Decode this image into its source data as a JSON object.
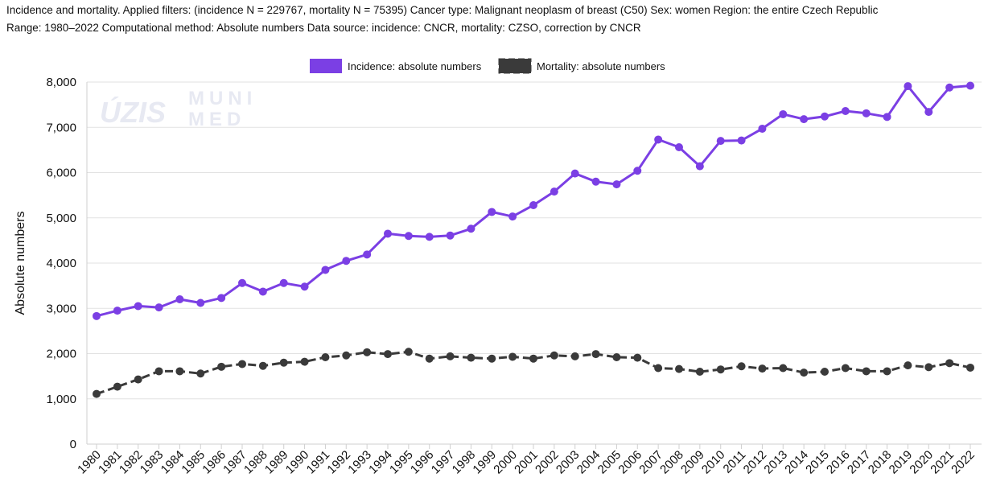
{
  "header": {
    "line1": "Incidence and mortality. Applied filters: (incidence N = 229767, mortality N = 75395) Cancer type: Malignant neoplasm of breast (C50) Sex: women Region: the entire Czech Republic",
    "line2": "Range: 1980–2022 Computational method: Absolute numbers Data source: incidence: CNCR, mortality: CZSO, correction by CNCR"
  },
  "watermark": {
    "logo1": "ÚZIS",
    "logo2a": "MUNI",
    "logo2b": "MED"
  },
  "chart_data": {
    "type": "line",
    "x": [
      1980,
      1981,
      1982,
      1983,
      1984,
      1985,
      1986,
      1987,
      1988,
      1989,
      1990,
      1991,
      1992,
      1993,
      1994,
      1995,
      1996,
      1997,
      1998,
      1999,
      2000,
      2001,
      2002,
      2003,
      2004,
      2005,
      2006,
      2007,
      2008,
      2009,
      2010,
      2011,
      2012,
      2013,
      2014,
      2015,
      2016,
      2017,
      2018,
      2019,
      2020,
      2021,
      2022
    ],
    "series": [
      {
        "name": "Incidence: absolute numbers",
        "color": "#7b3fe4",
        "style": "solid",
        "values": [
          2830,
          2950,
          3050,
          3020,
          3200,
          3120,
          3230,
          3560,
          3370,
          3560,
          3480,
          3850,
          4050,
          4190,
          4650,
          4600,
          4580,
          4610,
          4760,
          5130,
          5030,
          5280,
          5580,
          5980,
          5800,
          5740,
          6040,
          6730,
          6560,
          6140,
          6700,
          6710,
          6970,
          7290,
          7180,
          7240,
          7360,
          7310,
          7230,
          7910,
          7340,
          7880,
          7920
        ]
      },
      {
        "name": "Mortality: absolute numbers",
        "color": "#3a3a3a",
        "style": "dashed",
        "values": [
          1110,
          1270,
          1430,
          1610,
          1610,
          1560,
          1710,
          1770,
          1730,
          1800,
          1820,
          1920,
          1960,
          2030,
          1990,
          2040,
          1890,
          1940,
          1910,
          1890,
          1930,
          1890,
          1960,
          1940,
          1990,
          1920,
          1910,
          1680,
          1660,
          1600,
          1650,
          1720,
          1670,
          1680,
          1580,
          1600,
          1680,
          1610,
          1610,
          1740,
          1700,
          1790,
          1690
        ]
      }
    ],
    "ylabel": "Absolute numbers",
    "xlabel": "",
    "ylim": [
      0,
      8000
    ],
    "yticks": [
      0,
      1000,
      2000,
      3000,
      4000,
      5000,
      6000,
      7000,
      8000
    ],
    "ytick_labels": [
      "0",
      "1,000",
      "2,000",
      "3,000",
      "4,000",
      "5,000",
      "6,000",
      "7,000",
      "8,000"
    ],
    "grid": true,
    "legend_position": "top-center"
  }
}
